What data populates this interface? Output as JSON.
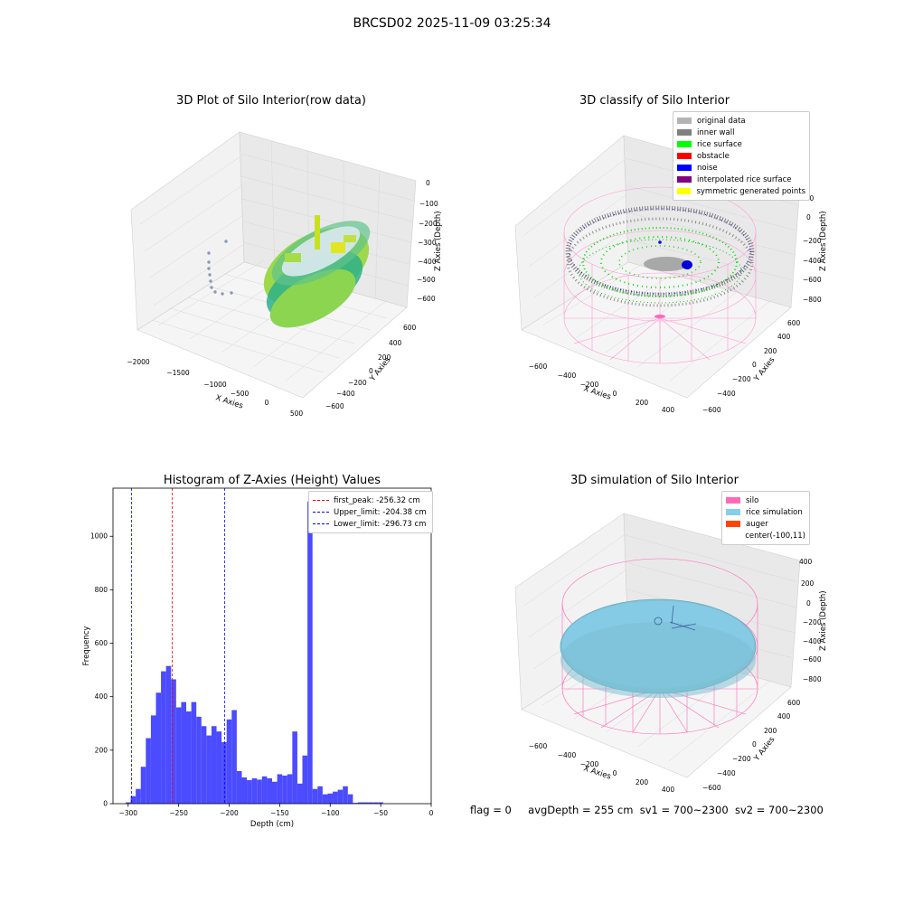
{
  "figure": {
    "suptitle": "BRCSD02 2025-11-09 03:25:34",
    "status": {
      "flag": "flag = 0",
      "avg_depth": "avgDepth = 255 cm",
      "sv1": "sv1 = 700~2300",
      "sv2": "sv2 = 700~2300"
    }
  },
  "panels": {
    "raw": {
      "title": "3D Plot of Silo Interior(row data)",
      "xlabel": "X Axies",
      "ylabel": "Y Axies",
      "zlabel": "Z Axies (Depth)",
      "xticks": [
        "−2000",
        "−1500",
        "−1000",
        "−500",
        "0",
        "500"
      ],
      "yticks": [
        "600",
        "400",
        "200",
        "0",
        "−200",
        "−400",
        "−600"
      ],
      "zticks": [
        "0",
        "−100",
        "−200",
        "−300",
        "−400",
        "−500",
        "−600"
      ]
    },
    "classify": {
      "title": "3D classify of Silo Interior",
      "xlabel": "X Axies",
      "ylabel": "Y Axies",
      "zlabel": "Z Axies (Depth)",
      "xticks": [
        "−600",
        "−400",
        "−200",
        "0",
        "200",
        "400"
      ],
      "yticks": [
        "600",
        "400",
        "200",
        "0",
        "−200",
        "−400",
        "−600"
      ],
      "zticks": [
        "200",
        "0",
        "−200",
        "−400",
        "−600",
        "−800"
      ],
      "legend": [
        {
          "label": "original data",
          "color": "#b4b4b4"
        },
        {
          "label": "inner wall",
          "color": "#808080"
        },
        {
          "label": "rice surface",
          "color": "#00ff00"
        },
        {
          "label": "obstacle",
          "color": "#ff0000"
        },
        {
          "label": "noise",
          "color": "#0000ff"
        },
        {
          "label": "interpolated rice surface",
          "color": "#800080"
        },
        {
          "label": "symmetric generated points",
          "color": "#ffff00"
        }
      ]
    },
    "simulation": {
      "title": "3D simulation of Silo Interior",
      "xlabel": "X Axies",
      "ylabel": "Y Axies",
      "zlabel": "Z Axies (Depth)",
      "xticks": [
        "−600",
        "−400",
        "−200",
        "0",
        "200",
        "400"
      ],
      "yticks": [
        "600",
        "400",
        "200",
        "0",
        "−200",
        "−400",
        "−600"
      ],
      "zticks": [
        "400",
        "200",
        "0",
        "−200",
        "−400",
        "−600",
        "−800"
      ],
      "legend": [
        {
          "label": "silo",
          "color": "#ff69b4"
        },
        {
          "label": "rice simulation",
          "color": "#87ceeb"
        },
        {
          "label": "auger",
          "color": "#ff4500"
        },
        {
          "label": "center(-100,11)",
          "color": ""
        }
      ]
    }
  },
  "chart_data": {
    "type": "bar",
    "title": "Histogram of Z-Axies (Height) Values",
    "xlabel": "Depth (cm)",
    "ylabel": "Frequency",
    "xlim": [
      -315,
      0
    ],
    "ylim": [
      0,
      1180
    ],
    "xticks": [
      -300,
      -250,
      -200,
      -150,
      -100,
      -50,
      0
    ],
    "yticks": [
      0,
      200,
      400,
      600,
      800,
      1000
    ],
    "bar_color": "#4b4bff",
    "bin_start": -302.5,
    "bin_width": 5,
    "values": [
      5,
      28,
      55,
      138,
      245,
      330,
      415,
      495,
      515,
      465,
      360,
      380,
      345,
      380,
      325,
      290,
      255,
      290,
      270,
      230,
      315,
      350,
      122,
      98,
      88,
      95,
      90,
      102,
      95,
      82,
      110,
      105,
      110,
      270,
      75,
      180,
      1130,
      55,
      65,
      35,
      38,
      45,
      52,
      65,
      35,
      3,
      5,
      5,
      5,
      5,
      5
    ],
    "vlines": [
      {
        "x": -256.32,
        "label": "first_peak: -256.32 cm",
        "color": "#ff0000"
      },
      {
        "x": -204.38,
        "label": "Upper_limit: -204.38 cm",
        "color": "#0000ff"
      },
      {
        "x": -296.73,
        "label": "Lower_limit: -296.73 cm",
        "color": "#0000ff"
      }
    ],
    "legend_position": "upper right"
  }
}
